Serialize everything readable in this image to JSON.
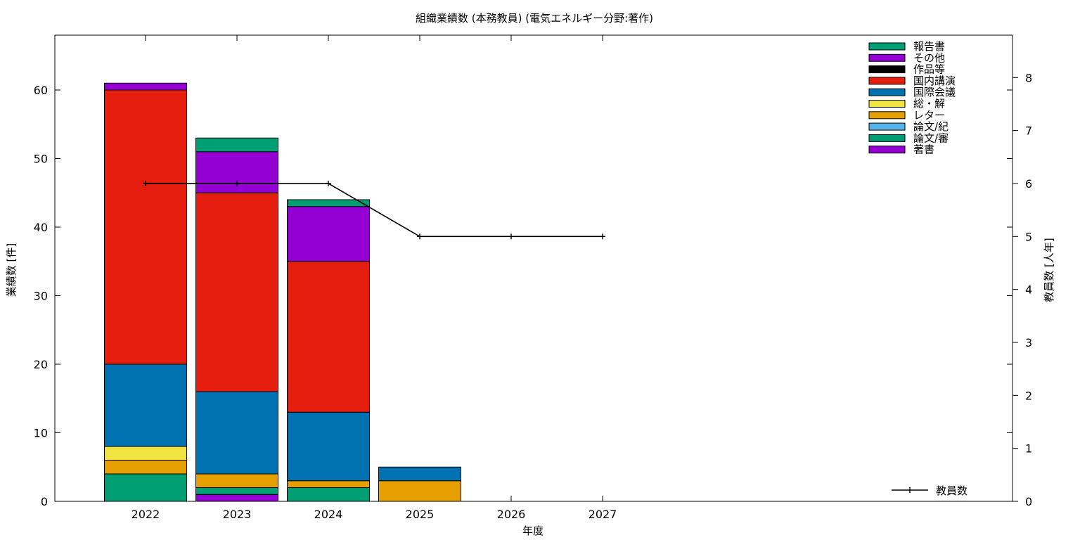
{
  "chart_data": {
    "type": "bar",
    "title": "組織業績数 (本務教員) (電気エネルギー分野:著作)",
    "xlabel": "年度",
    "ylabel": "業績数 [件]",
    "y2label": "教員数 [人年]",
    "categories": [
      "2022",
      "2023",
      "2024",
      "2025",
      "2026",
      "2027"
    ],
    "ylim": [
      0,
      68
    ],
    "y_ticks": [
      0,
      10,
      20,
      30,
      40,
      50,
      60
    ],
    "y2lim": [
      0,
      8.8
    ],
    "y2_ticks": [
      0,
      1,
      2,
      3,
      4,
      5,
      6,
      7,
      8
    ],
    "stacked": true,
    "legend_position": "top-right",
    "series": [
      {
        "name": "著書",
        "color": "#9400d3",
        "values": [
          0,
          1,
          0,
          0,
          0,
          0
        ]
      },
      {
        "name": "論文/審",
        "color": "#009e73",
        "values": [
          4,
          1,
          2,
          0,
          0,
          0
        ]
      },
      {
        "name": "論文/紀",
        "color": "#56b4e9",
        "values": [
          0,
          0,
          0,
          0,
          0,
          0
        ]
      },
      {
        "name": "レター",
        "color": "#e69f00",
        "values": [
          2,
          2,
          1,
          3,
          0,
          0
        ]
      },
      {
        "name": "総・解",
        "color": "#f0e442",
        "values": [
          2,
          0,
          0,
          0,
          0,
          0
        ]
      },
      {
        "name": "国際会議",
        "color": "#0072b2",
        "values": [
          12,
          12,
          10,
          2,
          0,
          0
        ]
      },
      {
        "name": "国内講演",
        "color": "#e51e10",
        "values": [
          40,
          29,
          22,
          0,
          0,
          0
        ]
      },
      {
        "name": "作品等",
        "color": "#000000",
        "values": [
          0,
          0,
          0,
          0,
          0,
          0
        ]
      },
      {
        "name": "その他",
        "color": "#9400d3",
        "values": [
          1,
          6,
          8,
          0,
          0,
          0
        ]
      },
      {
        "name": "報告書",
        "color": "#009e73",
        "values": [
          0,
          2,
          1,
          0,
          0,
          0
        ]
      }
    ],
    "legend_order": [
      "報告書",
      "その他",
      "作品等",
      "国内講演",
      "国際会議",
      "総・解",
      "レター",
      "論文/紀",
      "論文/審",
      "著書"
    ],
    "line_series": {
      "name": "教員数",
      "axis": "y2",
      "color": "#000000",
      "values": [
        6,
        6,
        6,
        5,
        5,
        5
      ]
    }
  }
}
